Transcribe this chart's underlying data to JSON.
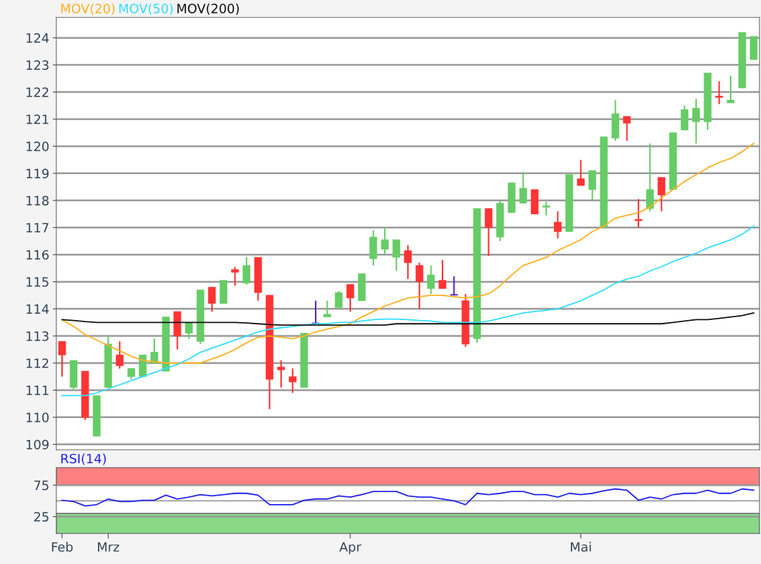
{
  "chart_data": [
    {
      "type": "candlestick",
      "tick_labels": "y",
      "grid": "y",
      "legend": "top left",
      "categories": [
        null,
        null,
        null,
        null,
        null,
        null,
        null,
        null,
        null,
        null,
        null,
        null,
        null,
        null,
        null,
        null,
        null,
        null,
        null,
        null,
        null,
        null,
        null,
        null,
        null,
        null,
        null,
        null,
        null,
        null,
        null,
        null,
        null,
        null,
        null,
        null,
        null,
        null,
        null,
        null,
        null,
        null,
        null,
        null,
        null,
        null,
        null,
        null,
        null,
        null,
        null,
        null,
        null,
        null,
        null,
        null,
        null,
        null,
        null,
        null,
        null
      ],
      "ylim": [
        108.8,
        124.75
      ],
      "yticks": [
        109,
        110,
        111,
        112,
        113,
        114,
        115,
        116,
        117,
        118,
        119,
        120,
        121,
        122,
        123,
        124
      ],
      "ohlc": [
        [
          112.8,
          112.8,
          111.5,
          112.3
        ],
        [
          111.1,
          112.1,
          111.0,
          112.1
        ],
        [
          111.7,
          111.7,
          109.9,
          110.0
        ],
        [
          109.3,
          110.8,
          109.3,
          110.8
        ],
        [
          111.1,
          113.0,
          111.1,
          112.7
        ],
        [
          112.3,
          112.8,
          111.8,
          111.9
        ],
        [
          111.5,
          111.8,
          111.4,
          111.8
        ],
        [
          111.5,
          112.3,
          111.5,
          112.3
        ],
        [
          112.0,
          112.9,
          112.0,
          112.4
        ],
        [
          111.7,
          113.7,
          111.7,
          113.7
        ],
        [
          113.9,
          113.9,
          112.5,
          113.0
        ],
        [
          113.1,
          113.5,
          112.9,
          113.5
        ],
        [
          112.8,
          114.7,
          112.7,
          114.7
        ],
        [
          114.8,
          114.8,
          113.9,
          114.2
        ],
        [
          114.2,
          115.05,
          114.2,
          115.05
        ],
        [
          115.45,
          115.55,
          114.85,
          115.35
        ],
        [
          114.95,
          115.9,
          114.9,
          115.6
        ],
        [
          115.9,
          115.9,
          114.3,
          114.6
        ],
        [
          114.5,
          114.5,
          110.3,
          111.4
        ],
        [
          111.85,
          112.1,
          111.1,
          111.75
        ],
        [
          111.5,
          111.8,
          110.9,
          111.3
        ],
        [
          111.1,
          113.1,
          111.1,
          113.1
        ],
        [
          113.45,
          114.3,
          113.45,
          113.45
        ],
        [
          113.7,
          114.3,
          113.7,
          113.8
        ],
        [
          114.05,
          114.65,
          114.0,
          114.6
        ],
        [
          114.9,
          114.9,
          113.9,
          114.4
        ],
        [
          114.3,
          115.3,
          114.3,
          115.3
        ],
        [
          115.85,
          116.9,
          115.6,
          116.65
        ],
        [
          116.2,
          117.0,
          116.0,
          116.55
        ],
        [
          115.9,
          116.55,
          115.4,
          116.55
        ],
        [
          116.15,
          116.35,
          115.1,
          115.7
        ],
        [
          115.6,
          115.7,
          114.0,
          115.0
        ],
        [
          114.75,
          115.6,
          114.55,
          115.25
        ],
        [
          115.05,
          115.8,
          114.75,
          114.75
        ],
        [
          114.5,
          115.2,
          114.5,
          114.5
        ],
        [
          114.3,
          114.55,
          112.6,
          112.7
        ],
        [
          112.9,
          117.7,
          112.75,
          117.7
        ],
        [
          117.7,
          117.7,
          115.95,
          117.0
        ],
        [
          116.65,
          118.0,
          116.5,
          117.9
        ],
        [
          117.55,
          118.65,
          117.55,
          118.65
        ],
        [
          117.9,
          119.05,
          117.9,
          118.45
        ],
        [
          118.4,
          118.4,
          117.5,
          117.5
        ],
        [
          117.75,
          117.95,
          117.45,
          117.8
        ],
        [
          117.2,
          117.6,
          116.6,
          116.85
        ],
        [
          116.85,
          118.95,
          116.85,
          118.95
        ],
        [
          118.8,
          119.5,
          118.55,
          118.55
        ],
        [
          118.4,
          119.1,
          118.0,
          119.1
        ],
        [
          117.0,
          120.35,
          117.0,
          120.35
        ],
        [
          120.3,
          121.7,
          120.2,
          121.2
        ],
        [
          121.1,
          121.1,
          120.2,
          120.85
        ],
        [
          117.3,
          118.05,
          117.0,
          117.25
        ],
        [
          117.7,
          120.1,
          117.6,
          118.4
        ],
        [
          118.85,
          118.85,
          117.6,
          118.2
        ],
        [
          118.4,
          120.5,
          118.4,
          120.5
        ],
        [
          120.6,
          121.5,
          120.6,
          121.35
        ],
        [
          120.9,
          121.75,
          120.1,
          121.4
        ],
        [
          120.9,
          122.7,
          120.6,
          122.7
        ],
        [
          121.85,
          122.4,
          121.55,
          121.8
        ],
        [
          121.6,
          122.6,
          121.6,
          121.7
        ],
        [
          122.15,
          124.2,
          122.15,
          124.2
        ],
        [
          123.2,
          124.05,
          123.2,
          124.05
        ]
      ],
      "colors": [
        "#ff3333",
        "#66cc66",
        "#ff3333",
        "#66cc66",
        "#66cc66",
        "#ff3333",
        "#66cc66",
        "#66cc66",
        "#66cc66",
        "#66cc66",
        "#ff3333",
        "#66cc66",
        "#66cc66",
        "#ff3333",
        "#66cc66",
        "#ff3333",
        "#66cc66",
        "#ff3333",
        "#ff3333",
        "#ff3333",
        "#ff3333",
        "#66cc66",
        "#5522cc",
        "#66cc66",
        "#66cc66",
        "#ff3333",
        "#66cc66",
        "#66cc66",
        "#66cc66",
        "#66cc66",
        "#ff3333",
        "#ff3333",
        "#66cc66",
        "#ff3333",
        "#5522cc",
        "#ff3333",
        "#66cc66",
        "#ff3333",
        "#66cc66",
        "#66cc66",
        "#66cc66",
        "#ff3333",
        "#66cc66",
        "#ff3333",
        "#66cc66",
        "#ff3333",
        "#66cc66",
        "#66cc66",
        "#66cc66",
        "#ff3333",
        "#ff3333",
        "#66cc66",
        "#ff3333",
        "#66cc66",
        "#66cc66",
        "#66cc66",
        "#66cc66",
        "#ff3333",
        "#66cc66",
        "#66cc66",
        "#66cc66"
      ],
      "series": [
        {
          "name": "MOV(20)",
          "type": "line",
          "color": "#ffb020",
          "values": [
            113.6,
            113.35,
            113.05,
            112.85,
            112.65,
            112.45,
            112.25,
            112.1,
            112.05,
            112.0,
            112.0,
            112.0,
            112.0,
            112.15,
            112.3,
            112.5,
            112.75,
            112.95,
            113.0,
            112.95,
            112.9,
            113.0,
            113.15,
            113.25,
            113.35,
            113.45,
            113.7,
            113.9,
            114.1,
            114.25,
            114.4,
            114.45,
            114.5,
            114.5,
            114.45,
            114.4,
            114.45,
            114.55,
            114.85,
            115.25,
            115.6,
            115.75,
            115.9,
            116.15,
            116.35,
            116.55,
            116.85,
            117.05,
            117.35,
            117.45,
            117.55,
            117.75,
            118.1,
            118.4,
            118.7,
            118.95,
            119.2,
            119.4,
            119.55,
            119.8,
            120.1
          ]
        },
        {
          "name": "MOV(50)",
          "type": "line",
          "color": "#33ddff",
          "values": [
            110.8,
            110.8,
            110.8,
            110.9,
            111.05,
            111.2,
            111.35,
            111.5,
            111.65,
            111.8,
            111.95,
            112.15,
            112.4,
            112.55,
            112.7,
            112.85,
            113.0,
            113.15,
            113.25,
            113.3,
            113.35,
            113.4,
            113.45,
            113.45,
            113.5,
            113.5,
            113.55,
            113.6,
            113.62,
            113.62,
            113.6,
            113.57,
            113.55,
            113.5,
            113.5,
            113.5,
            113.5,
            113.55,
            113.65,
            113.75,
            113.85,
            113.9,
            113.95,
            114.0,
            114.15,
            114.3,
            114.5,
            114.7,
            114.95,
            115.1,
            115.2,
            115.4,
            115.55,
            115.75,
            115.9,
            116.05,
            116.25,
            116.4,
            116.55,
            116.75,
            117.05
          ]
        },
        {
          "name": "MOV(200)",
          "type": "line",
          "color": "#111111",
          "values": [
            113.6,
            113.57,
            113.53,
            113.5,
            113.5,
            113.5,
            113.5,
            113.5,
            113.5,
            113.5,
            113.5,
            113.5,
            113.5,
            113.5,
            113.5,
            113.5,
            113.48,
            113.45,
            113.42,
            113.4,
            113.4,
            113.4,
            113.4,
            113.4,
            113.4,
            113.4,
            113.4,
            113.4,
            113.4,
            113.45,
            113.45,
            113.45,
            113.45,
            113.45,
            113.45,
            113.45,
            113.45,
            113.45,
            113.45,
            113.45,
            113.45,
            113.45,
            113.45,
            113.45,
            113.45,
            113.45,
            113.45,
            113.45,
            113.45,
            113.45,
            113.45,
            113.45,
            113.45,
            113.5,
            113.55,
            113.6,
            113.6,
            113.65,
            113.7,
            113.75,
            113.85
          ]
        }
      ]
    },
    {
      "type": "line",
      "grid": "y",
      "legend": "top left",
      "categories": [
        "Feb",
        null,
        null,
        null,
        "Mrz",
        null,
        null,
        null,
        null,
        null,
        null,
        null,
        null,
        null,
        null,
        null,
        null,
        null,
        null,
        null,
        null,
        null,
        null,
        null,
        null,
        "Apr",
        null,
        null,
        null,
        null,
        null,
        null,
        null,
        null,
        null,
        null,
        null,
        null,
        null,
        null,
        null,
        null,
        null,
        null,
        null,
        "Mai",
        null,
        null,
        null,
        null,
        null,
        null,
        null,
        null,
        null,
        null,
        null,
        null,
        null,
        null,
        null
      ],
      "ylim": [
        -2,
        103
      ],
      "yticks": [
        25,
        75
      ],
      "bands": [
        {
          "axis": "y",
          "from": 75,
          "to": 103,
          "color": "#ff8080"
        },
        {
          "axis": "y",
          "from": -2,
          "to": 30,
          "color": "#88d888"
        }
      ],
      "ref_lines": [
        {
          "axis": "y",
          "value": 50,
          "color": "#999999"
        }
      ],
      "series": [
        {
          "name": "RSI(14)",
          "color": "#2222ee",
          "values": [
            51,
            49,
            42,
            44,
            53,
            49,
            49,
            51,
            51,
            59,
            53,
            56,
            60,
            58,
            60,
            62,
            62,
            59,
            44,
            44,
            44,
            51,
            53,
            53,
            58,
            56,
            60,
            65,
            65,
            65,
            58,
            56,
            56,
            53,
            50,
            44,
            62,
            60,
            62,
            65,
            65,
            60,
            60,
            56,
            62,
            60,
            62,
            66,
            69,
            67,
            51,
            56,
            53,
            60,
            62,
            62,
            67,
            62,
            62,
            69,
            67
          ]
        }
      ]
    }
  ]
}
